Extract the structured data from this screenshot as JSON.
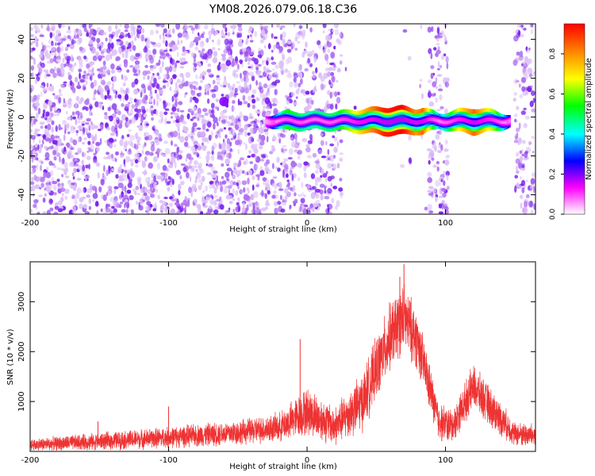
{
  "title": "YM08.2026.079.06.18.C36",
  "chart_data": [
    {
      "type": "heatmap",
      "xlabel": "Height of straight line (km)",
      "ylabel": "Frequency (Hz)",
      "xlim": [
        -200,
        165
      ],
      "ylim": [
        -50,
        48
      ],
      "xticks": [
        -200,
        -100,
        0,
        100
      ],
      "yticks": [
        -40,
        -20,
        0,
        20,
        40
      ],
      "colorbar": {
        "label": "Normalized spectral amplitude",
        "range": [
          0,
          0.95
        ],
        "ticks": [
          "0.0",
          "0.2",
          "0.4",
          "0.6",
          "0.8"
        ],
        "tick_values": [
          0,
          0.2,
          0.4,
          0.6,
          0.8
        ],
        "colors": [
          "#ffffff",
          "#ff00ff",
          "#0000ff",
          "#00ffff",
          "#00ff00",
          "#ffff00",
          "#ff8800",
          "#ff0000"
        ]
      },
      "background_noise": {
        "dense_region_x": [
          -200,
          -25
        ],
        "dense_region_amplitude": 0.12,
        "sparse_bands_x": [
          [
            -25,
            25
          ],
          [
            88,
            102
          ],
          [
            150,
            165
          ]
        ],
        "quiet_region_x": [
          25,
          88
        ]
      },
      "signal_band": {
        "frequency_center": -2,
        "x_range": [
          -30,
          147
        ],
        "blob": {
          "x": -60,
          "y": 8,
          "amplitude": 0.2
        },
        "amplitude_profile": [
          {
            "x": -30,
            "amplitude": 0.15
          },
          {
            "x": -15,
            "amplitude": 0.55
          },
          {
            "x": 0,
            "amplitude": 0.45
          },
          {
            "x": 20,
            "amplitude": 0.5
          },
          {
            "x": 40,
            "amplitude": 0.75
          },
          {
            "x": 55,
            "amplitude": 0.92
          },
          {
            "x": 68,
            "amplitude": 0.95
          },
          {
            "x": 78,
            "amplitude": 0.8
          },
          {
            "x": 83,
            "amplitude": 0.85
          },
          {
            "x": 95,
            "amplitude": 0.35
          },
          {
            "x": 110,
            "amplitude": 0.7
          },
          {
            "x": 120,
            "amplitude": 0.85
          },
          {
            "x": 135,
            "amplitude": 0.6
          },
          {
            "x": 147,
            "amplitude": 0.2
          }
        ]
      }
    },
    {
      "type": "line",
      "xlabel": "Height of straight line (km)",
      "ylabel": "SNR (10 * v/v)",
      "xlim": [
        -200,
        165
      ],
      "ylim": [
        0,
        3800
      ],
      "xticks": [
        -200,
        -100,
        0,
        100
      ],
      "yticks": [
        1000,
        2000,
        3000
      ],
      "series": [
        {
          "name": "SNR",
          "color": "#ee3333",
          "envelope": [
            {
              "x": -200,
              "mean": 130,
              "noise": 130
            },
            {
              "x": -150,
              "mean": 200,
              "noise": 180
            },
            {
              "x": -100,
              "mean": 280,
              "noise": 220
            },
            {
              "x": -50,
              "mean": 380,
              "noise": 260
            },
            {
              "x": -20,
              "mean": 480,
              "noise": 300
            },
            {
              "x": 0,
              "mean": 800,
              "noise": 500
            },
            {
              "x": 20,
              "mean": 500,
              "noise": 400
            },
            {
              "x": 40,
              "mean": 1000,
              "noise": 600
            },
            {
              "x": 60,
              "mean": 2300,
              "noise": 700
            },
            {
              "x": 70,
              "mean": 2700,
              "noise": 700
            },
            {
              "x": 80,
              "mean": 2200,
              "noise": 600
            },
            {
              "x": 95,
              "mean": 600,
              "noise": 400
            },
            {
              "x": 105,
              "mean": 500,
              "noise": 350
            },
            {
              "x": 120,
              "mean": 1300,
              "noise": 450
            },
            {
              "x": 135,
              "mean": 800,
              "noise": 400
            },
            {
              "x": 150,
              "mean": 350,
              "noise": 250
            },
            {
              "x": 165,
              "mean": 320,
              "noise": 250
            }
          ],
          "spikes": [
            {
              "x": -5,
              "value": 2250
            },
            {
              "x": 70,
              "value": 3750
            },
            {
              "x": 67,
              "value": 3500
            },
            {
              "x": -100,
              "value": 900
            },
            {
              "x": -151,
              "value": 600
            }
          ]
        }
      ]
    }
  ]
}
